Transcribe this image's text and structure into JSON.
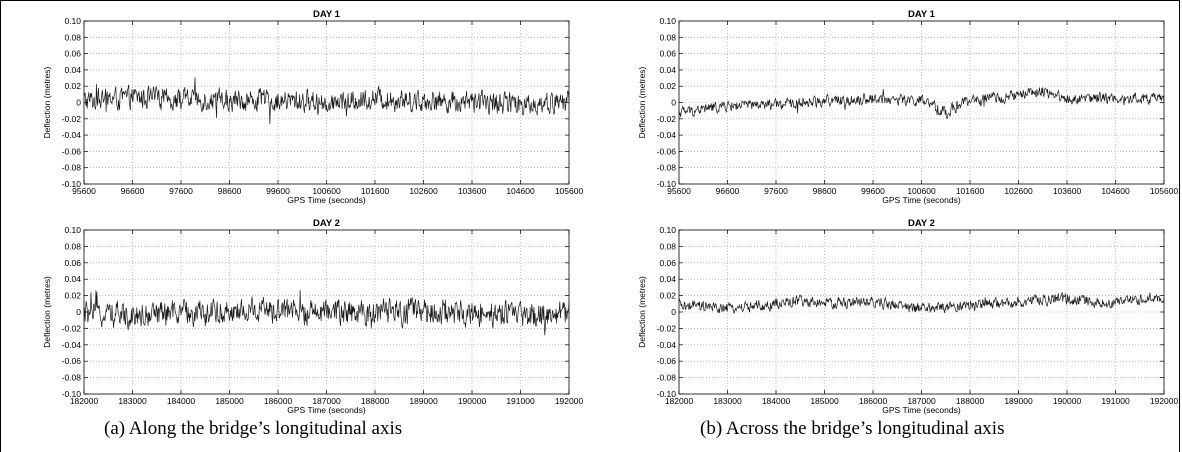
{
  "captions": {
    "a": "(a) Along the bridge’s longitudinal axis",
    "b": "(b) Across the bridge’s longitudinal axis"
  },
  "colors": {
    "trace": "#1a1a1a",
    "grid": "#9a9a9a",
    "axis": "#000000"
  },
  "chart_data": [
    {
      "id": "a-day1",
      "type": "line",
      "title": "DAY 1",
      "xlabel": "GPS Time (seconds)",
      "ylabel": "Deflection (metres)",
      "xlim": [
        95600,
        105600
      ],
      "ylim": [
        -0.1,
        0.1
      ],
      "grid": true,
      "xticks": [
        "95600",
        "96600",
        "97600",
        "98600",
        "99600",
        "100600",
        "101600",
        "102600",
        "103600",
        "104600",
        "105600"
      ],
      "yticks": [
        "0.10",
        "0.08",
        "0.06",
        "0.04",
        "0.02",
        "0",
        "-0.02",
        "-0.04",
        "-0.06",
        "-0.08",
        "-0.10"
      ],
      "series": [
        {
          "x": [
            95600,
            96600,
            97600,
            98600,
            99600,
            100600,
            101600,
            102600,
            103600,
            104600,
            105600
          ],
          "y": [
            0.002,
            0.006,
            0.004,
            0.003,
            0.002,
            0.001,
            0.005,
            0.002,
            0.001,
            -0.002,
            0.001
          ],
          "noise": 0.012
        }
      ]
    },
    {
      "id": "b-day1",
      "type": "line",
      "title": "DAY 1",
      "xlabel": "GPS Time (seconds)",
      "ylabel": "Deflection (metres)",
      "xlim": [
        95600,
        105600
      ],
      "ylim": [
        -0.1,
        0.1
      ],
      "grid": true,
      "xticks": [
        "95600",
        "96600",
        "97600",
        "98600",
        "99600",
        "100600",
        "101600",
        "102600",
        "103600",
        "104600",
        "105600"
      ],
      "yticks": [
        "0.10",
        "0.08",
        "0.06",
        "0.04",
        "0.02",
        "0",
        "-0.02",
        "-0.04",
        "-0.06",
        "-0.08",
        "-0.10"
      ],
      "series": [
        {
          "x": [
            95600,
            96600,
            97600,
            98600,
            99600,
            100600,
            101100,
            101600,
            102600,
            103100,
            103600,
            104600,
            105600
          ],
          "y": [
            -0.012,
            -0.004,
            -0.003,
            0.002,
            0.005,
            0.002,
            -0.012,
            0.003,
            0.008,
            0.015,
            0.004,
            0.006,
            0.004
          ],
          "noise": 0.006
        }
      ]
    },
    {
      "id": "a-day2",
      "type": "line",
      "title": "DAY 2",
      "xlabel": "GPS Time (seconds)",
      "ylabel": "Deflection (metres)",
      "xlim": [
        182000,
        192000
      ],
      "ylim": [
        -0.1,
        0.1
      ],
      "grid": true,
      "xticks": [
        "182000",
        "183000",
        "184000",
        "185000",
        "186000",
        "187000",
        "188000",
        "189000",
        "190000",
        "191000",
        "192000"
      ],
      "yticks": [
        "0.10",
        "0.08",
        "0.06",
        "0.04",
        "0.02",
        "0",
        "-0.02",
        "-0.04",
        "-0.06",
        "-0.08",
        "-0.10"
      ],
      "series": [
        {
          "x": [
            182000,
            183000,
            184000,
            185000,
            186000,
            187000,
            188000,
            189000,
            190000,
            191000,
            192000
          ],
          "y": [
            -0.002,
            -0.003,
            -0.002,
            0.001,
            0.002,
            -0.001,
            -0.001,
            0.0,
            -0.002,
            -0.004,
            -0.002
          ],
          "noise": 0.014
        }
      ]
    },
    {
      "id": "b-day2",
      "type": "line",
      "title": "DAY 2",
      "xlabel": "GPS Time (seconds)",
      "ylabel": "Deflection (metres)",
      "xlim": [
        182000,
        192000
      ],
      "ylim": [
        -0.1,
        0.1
      ],
      "grid": true,
      "xticks": [
        "182000",
        "183000",
        "184000",
        "185000",
        "186000",
        "187000",
        "188000",
        "189000",
        "190000",
        "191000",
        "192000"
      ],
      "yticks": [
        "0.10",
        "0.08",
        "0.06",
        "0.04",
        "0.02",
        "0",
        "-0.02",
        "-0.04",
        "-0.06",
        "-0.08",
        "-0.10"
      ],
      "series": [
        {
          "x": [
            182000,
            183000,
            184000,
            184500,
            185000,
            186000,
            187000,
            188000,
            189000,
            190000,
            191000,
            191800,
            192000
          ],
          "y": [
            0.008,
            0.004,
            0.01,
            0.014,
            0.01,
            0.012,
            0.004,
            0.008,
            0.012,
            0.016,
            0.01,
            0.018,
            0.012
          ],
          "noise": 0.006
        }
      ]
    }
  ]
}
